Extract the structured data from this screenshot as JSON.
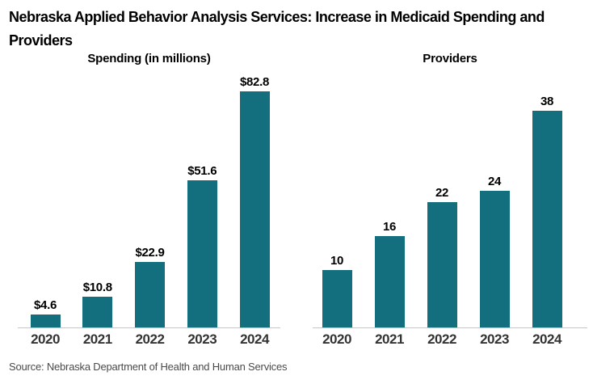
{
  "title": {
    "line1": "Nebraska Applied Behavior Analysis Services: Increase in Medicaid Spending and",
    "line2": "Providers"
  },
  "source": "Source: Nebraska Department of Health and Human Services",
  "colors": {
    "bar": "#136F7D",
    "axis_line": "#C6C6C6",
    "title_text": "#000000",
    "year_label_text": "#333333",
    "source_text": "#4A4A4A"
  },
  "chart_data": [
    {
      "type": "bar",
      "title": "Spending (in millions)",
      "categories": [
        "2020",
        "2021",
        "2022",
        "2023",
        "2024"
      ],
      "values": [
        4.6,
        10.8,
        22.9,
        51.6,
        82.8
      ],
      "labels": [
        "$4.6",
        "$10.8",
        "$22.9",
        "$51.6",
        "$82.8"
      ],
      "xlabel": "",
      "ylabel": "",
      "ylim": [
        0,
        82.8
      ],
      "grid": false,
      "legend_position": "none",
      "bar_color": "#136F7D"
    },
    {
      "type": "bar",
      "title": "Providers",
      "categories": [
        "2020",
        "2021",
        "2022",
        "2023",
        "2024"
      ],
      "values": [
        10,
        16,
        22,
        24,
        38
      ],
      "labels": [
        "10",
        "16",
        "22",
        "24",
        "38"
      ],
      "xlabel": "",
      "ylabel": "",
      "ylim": [
        0,
        38
      ],
      "grid": false,
      "legend_position": "none",
      "bar_color": "#136F7D"
    }
  ]
}
